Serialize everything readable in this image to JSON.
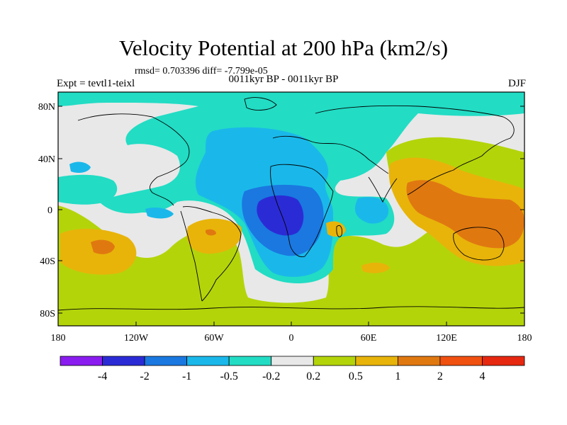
{
  "title": "Velocity Potential at 200 hPa (km2/s)",
  "stats": "rmsd= 0.703396 diff= -7.799e-05",
  "expt": "Expt = tevtl1-teixl",
  "period": "0011kyr BP - 0011kyr BP",
  "season": "DJF",
  "lat_labels": [
    "80N",
    "40N",
    "0",
    "40S",
    "80S"
  ],
  "lon_labels": [
    "180",
    "120W",
    "60W",
    "0",
    "60E",
    "120E",
    "180"
  ],
  "colorbar": {
    "labels": [
      "-4",
      "-2",
      "-1",
      "-0.5",
      "-0.2",
      "0.2",
      "0.5",
      "1",
      "2",
      "4"
    ],
    "colors": [
      "#8a1cf0",
      "#2b2bd6",
      "#1a78e0",
      "#1ab8ea",
      "#22dcc4",
      "#e8e8e8",
      "#b4d40a",
      "#e8b40a",
      "#e07810",
      "#f05010",
      "#e62810"
    ]
  },
  "field_colors": {
    "neg2": "#2b2bd6",
    "neg1": "#1a78e0",
    "neg05": "#1ab8ea",
    "neg02": "#22dcc4",
    "zero": "#e8e8e8",
    "pos02": "#b4d40a",
    "pos05": "#e8b40a",
    "pos1": "#e07810"
  }
}
